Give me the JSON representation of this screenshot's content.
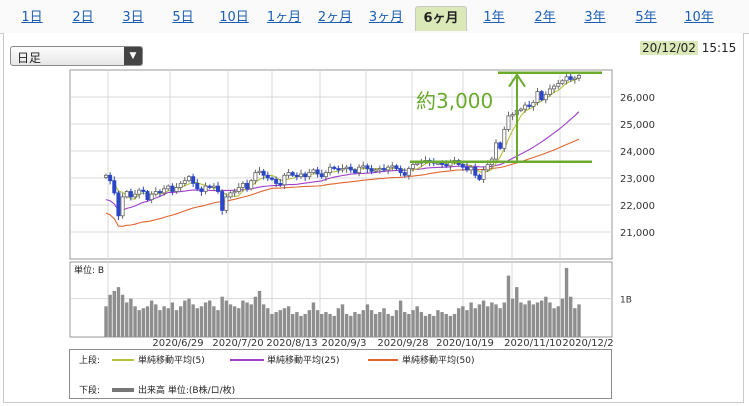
{
  "tabs": [
    {
      "label": "1日"
    },
    {
      "label": "2日"
    },
    {
      "label": "3日"
    },
    {
      "label": "5日"
    },
    {
      "label": "10日"
    },
    {
      "label": "1ヶ月"
    },
    {
      "label": "2ヶ月"
    },
    {
      "label": "3ヶ月"
    },
    {
      "label": "6ヶ月",
      "active": true
    },
    {
      "label": "1年"
    },
    {
      "label": "2年"
    },
    {
      "label": "3年"
    },
    {
      "label": "5年"
    },
    {
      "label": "10年"
    }
  ],
  "period_select": {
    "value": "日足"
  },
  "datetime": {
    "date": "20/12/02",
    "time": "15:15"
  },
  "annotation": {
    "text": "約3,000",
    "color": "#6aab2e"
  },
  "colors": {
    "ma5": "#b5c23a",
    "ma25": "#a040c8",
    "ma50": "#e0652f",
    "up": "#7a7a7a",
    "down": "#2b46c8",
    "volume": "#8e8e8e",
    "grid": "#d9d9d9"
  },
  "legend": {
    "upper_label": "上段:",
    "lower_label": "下段:",
    "ma5": "単純移動平均(5)",
    "ma25": "単純移動平均(25)",
    "ma50": "単純移動平均(50)",
    "volume": "出来高 単位:(B株/ロ/枚)"
  },
  "chart_data": [
    {
      "type": "candlestick",
      "title": "",
      "ylim": [
        20000,
        27000
      ],
      "yticks": [
        "21,000",
        "22,000",
        "23,000",
        "24,000",
        "25,000",
        "26,000"
      ],
      "grid": true,
      "dates": [
        "2020/6/29",
        "2020/7/20",
        "2020/8/13",
        "2020/9/3",
        "2020/9/28",
        "2020/10/19",
        "2020/11/10",
        "2020/12/2"
      ],
      "close": [
        23100,
        22900,
        22450,
        21600,
        22300,
        22500,
        22300,
        22400,
        22550,
        22500,
        22200,
        22400,
        22500,
        22450,
        22600,
        22700,
        22500,
        22650,
        22800,
        22900,
        23050,
        22800,
        22600,
        22500,
        22700,
        22650,
        22700,
        22500,
        21800,
        22300,
        22450,
        22500,
        22650,
        22800,
        22600,
        22900,
        23200,
        23250,
        23100,
        23000,
        22950,
        22800,
        22750,
        23100,
        23200,
        23100,
        23050,
        23150,
        23050,
        23200,
        23300,
        23150,
        23050,
        23200,
        23400,
        23350,
        23300,
        23350,
        23400,
        23300,
        23200,
        23400,
        23450,
        23350,
        23250,
        23300,
        23350,
        23300,
        23400,
        23450,
        23350,
        23200,
        23100,
        23350,
        23500,
        23550,
        23600,
        23650,
        23600,
        23550,
        23550,
        23500,
        23450,
        23600,
        23650,
        23500,
        23400,
        23300,
        23400,
        23100,
        22950,
        23300,
        23500,
        23700,
        24300,
        24100,
        24800,
        25300,
        25350,
        25500,
        25550,
        25700,
        25650,
        25800,
        26200,
        25900,
        26100,
        26300,
        26400,
        26500,
        26600,
        26750,
        26650,
        26700,
        26800
      ],
      "ma5_label": "単純移動平均(5)",
      "ma25_label": "単純移動平均(25)",
      "ma50_label": "単純移動平均(50)",
      "annotation_from": 23600,
      "annotation_to": 26900
    },
    {
      "type": "bar",
      "title": "",
      "unit_label": "単位: B",
      "ytick": "1B",
      "ylim": [
        0,
        1.85
      ],
      "values": [
        0.8,
        1.1,
        1.2,
        1.3,
        1.1,
        0.9,
        1.0,
        0.8,
        0.7,
        0.75,
        0.8,
        0.95,
        0.85,
        0.7,
        0.8,
        0.75,
        0.9,
        0.7,
        0.8,
        0.95,
        1.0,
        0.85,
        0.75,
        0.8,
        0.9,
        0.95,
        0.8,
        0.7,
        1.05,
        0.95,
        0.85,
        0.8,
        0.75,
        0.95,
        0.9,
        0.85,
        1.05,
        1.2,
        0.85,
        0.75,
        0.6,
        0.65,
        0.7,
        0.75,
        0.8,
        0.6,
        0.65,
        0.55,
        0.6,
        0.7,
        0.9,
        0.7,
        0.6,
        0.65,
        0.6,
        0.55,
        0.75,
        0.85,
        0.6,
        0.55,
        0.65,
        0.6,
        0.7,
        0.85,
        0.7,
        0.6,
        0.65,
        0.75,
        0.6,
        0.55,
        0.7,
        0.95,
        0.65,
        0.6,
        0.7,
        0.8,
        0.65,
        0.55,
        0.6,
        0.55,
        0.7,
        0.65,
        0.6,
        0.55,
        0.6,
        0.75,
        0.8,
        0.7,
        0.9,
        0.75,
        0.85,
        0.95,
        0.8,
        0.9,
        0.85,
        0.75,
        0.9,
        1.6,
        1.0,
        1.3,
        0.9,
        0.85,
        0.95,
        0.85,
        0.9,
        0.95,
        1.05,
        0.9,
        0.75,
        0.8,
        1.0,
        1.8,
        1.05,
        0.75,
        0.85
      ]
    }
  ]
}
